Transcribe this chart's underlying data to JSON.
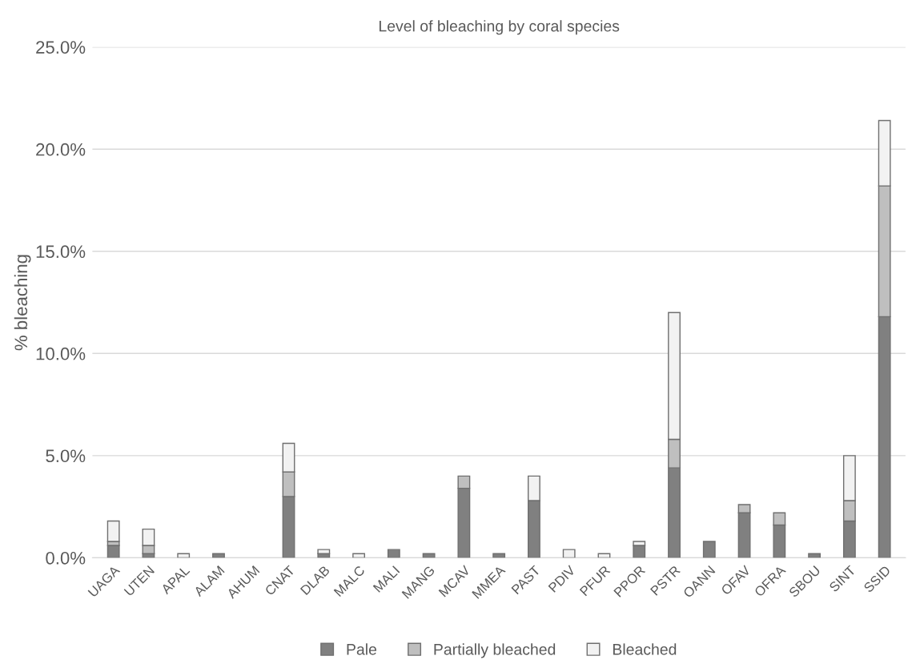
{
  "chart_data": {
    "type": "bar",
    "title": "Level of bleaching by coral species",
    "ylabel": "% bleaching",
    "stacked": true,
    "categories": [
      "UAGA",
      "UTEN",
      "APAL",
      "ALAM",
      "AHUM",
      "CNAT",
      "DLAB",
      "MALC",
      "MALI",
      "MANG",
      "MCAV",
      "MMEA",
      "PAST",
      "PDIV",
      "PFUR",
      "PPOR",
      "PSTR",
      "OANN",
      "OFAV",
      "OFRA",
      "SBOU",
      "SINT",
      "SSID"
    ],
    "series": [
      {
        "name": "Pale",
        "color": "#808080",
        "values": [
          0.6,
          0.2,
          0,
          0.2,
          0,
          3.0,
          0.2,
          0,
          0.4,
          0.2,
          3.4,
          0.2,
          2.8,
          0,
          0,
          0.6,
          4.4,
          0.8,
          2.2,
          1.6,
          0.2,
          1.8,
          11.8
        ]
      },
      {
        "name": "Partially bleached",
        "color": "#bfbfbf",
        "values": [
          0.2,
          0.4,
          0,
          0,
          0,
          1.2,
          0,
          0,
          0,
          0,
          0.6,
          0,
          0,
          0,
          0,
          0,
          1.4,
          0,
          0.4,
          0.6,
          0,
          1.0,
          6.4
        ]
      },
      {
        "name": "Bleached",
        "color": "#f2f2f2",
        "values": [
          1.0,
          0.8,
          0.2,
          0,
          0,
          1.4,
          0.2,
          0.2,
          0,
          0,
          0,
          0,
          1.2,
          0.4,
          0.2,
          0.2,
          6.2,
          0,
          0,
          0,
          0,
          2.2,
          3.2
        ]
      }
    ],
    "ylim": [
      0,
      25
    ],
    "yticks": [
      {
        "value": 0,
        "label": "0.0%"
      },
      {
        "value": 5,
        "label": "5.0%"
      },
      {
        "value": 10,
        "label": "10.0%"
      },
      {
        "value": 15,
        "label": "15.0%"
      },
      {
        "value": 20,
        "label": "20.0%"
      },
      {
        "value": 25,
        "label": "25.0%"
      }
    ],
    "grid": "y",
    "legend": "bottom"
  }
}
